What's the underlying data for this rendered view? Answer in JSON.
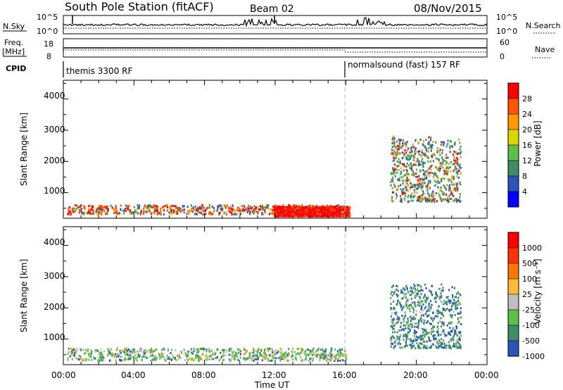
{
  "header": {
    "station": "South Pole Station (fitACF)",
    "beam": "Beam 02",
    "date": "08/Nov/2015"
  },
  "top_panels": {
    "nsky_label": "N.Sky",
    "nsky_ticks": [
      "10^5",
      "10^0"
    ],
    "nsearch_label": "N.Search",
    "nsearch_ticks": [
      "10^5",
      "10^0"
    ],
    "freq_label_1": "Freq.",
    "freq_label_2": "[MHz]",
    "freq_ticks": [
      "18",
      "8"
    ],
    "nave_label": "Nave",
    "nave_ticks": [
      "60",
      "0"
    ],
    "cpid_label": "CPID",
    "cpid_modes": [
      {
        "name": "themis 3300 RF",
        "start_hour": 0
      },
      {
        "name": "normalsound (fast) 157 RF",
        "start_hour": 16
      }
    ]
  },
  "chart_data": [
    {
      "type": "heatmap",
      "ylabel": "Slant Range [km]",
      "yticks": [
        "1000",
        "2000",
        "3000",
        "4000"
      ],
      "ylim": [
        180,
        4600
      ],
      "xlim_hours": [
        0,
        24
      ],
      "colorbar_label": "Power [dB]",
      "colorbar_ticks": [
        "28",
        "24",
        "20",
        "16",
        "12",
        "8",
        "4"
      ],
      "colorbar_colors": [
        "#0000ff",
        "#2a56b8",
        "#3e8c6a",
        "#5dbf4a",
        "#d8d800",
        "#ff9900",
        "#ff5500",
        "#ff0000"
      ],
      "scatter_regions": [
        {
          "x": [
            0.2,
            16.0
          ],
          "y": [
            300,
            600
          ],
          "value": "low-moderate"
        },
        {
          "x": [
            11.9,
            16.2
          ],
          "y": [
            200,
            550
          ],
          "value": "high"
        },
        {
          "x": [
            18.5,
            22.5
          ],
          "y": [
            700,
            2800
          ],
          "value": "moderate-high"
        }
      ]
    },
    {
      "type": "heatmap",
      "ylabel": "Slant Range [km]",
      "yticks": [
        "1000",
        "2000",
        "3000",
        "4000"
      ],
      "ylim": [
        180,
        4600
      ],
      "xlim_hours": [
        0,
        24
      ],
      "colorbar_label": "Velocity [m s⁻¹]",
      "colorbar_ticks": [
        "1000",
        "500",
        "100",
        "25",
        "-25",
        "-100",
        "-500",
        "-1000"
      ],
      "colorbar_colors": [
        "#2a56b8",
        "#3e8c6a",
        "#5dbf4a",
        "#bfbfbf",
        "#ffbb33",
        "#ff7700",
        "#ff3300",
        "#ff0000"
      ],
      "scatter_regions": [
        {
          "x": [
            0.2,
            16.0
          ],
          "y": [
            300,
            700
          ],
          "value": "green"
        },
        {
          "x": [
            18.5,
            22.5
          ],
          "y": [
            700,
            2800
          ],
          "value": "teal-blue"
        }
      ]
    }
  ],
  "x_axis": {
    "ticks": [
      "00:00",
      "04:00",
      "08:00",
      "12:00",
      "16:00",
      "20:00",
      "00:00"
    ],
    "label": "Time UT"
  },
  "colors": {
    "axis": "#000000",
    "marker_line": "#bbbbbb"
  }
}
